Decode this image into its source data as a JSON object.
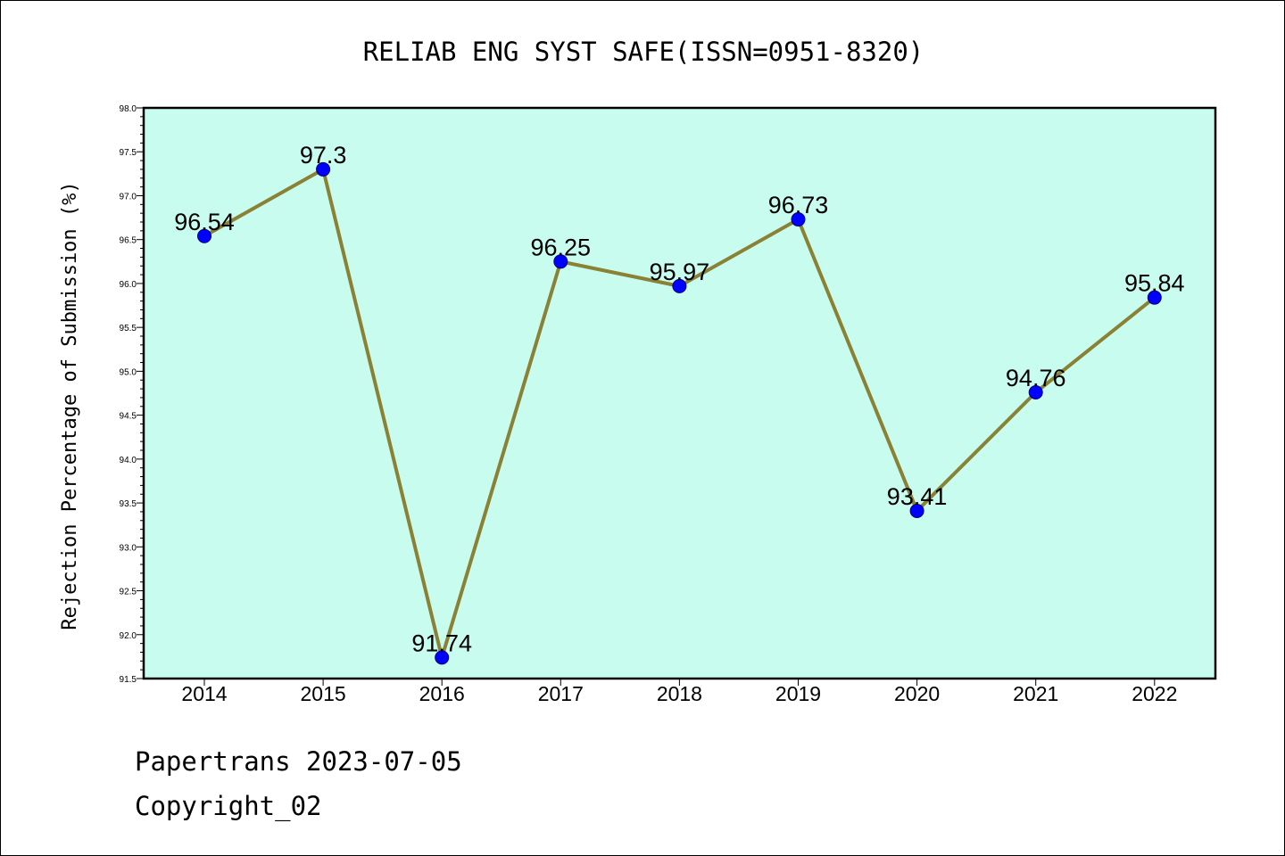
{
  "footer": {
    "line1": "Papertrans 2023-07-05",
    "line2": "Copyright_02"
  },
  "colors": {
    "plot_background": "#c8fcee",
    "line": "#8b8135",
    "marker": "#0000ff",
    "frame": "#000000"
  },
  "chart_data": {
    "type": "line",
    "title": "RELIAB ENG SYST SAFE(ISSN=0951-8320)",
    "xlabel": "",
    "ylabel": "Rejection Percentage of Submission (%)",
    "categories": [
      "2014",
      "2015",
      "2016",
      "2017",
      "2018",
      "2019",
      "2020",
      "2021",
      "2022"
    ],
    "series": [
      {
        "values": [
          96.54,
          97.3,
          91.74,
          96.25,
          95.97,
          96.73,
          93.41,
          94.76,
          95.84
        ],
        "labels": [
          "96.54",
          "97.3",
          "91.74",
          "96.25",
          "95.97",
          "96.73",
          "93.41",
          "94.76",
          "95.84"
        ]
      }
    ],
    "ylim": [
      91.5,
      98.0
    ],
    "yticks": [
      "91.5",
      "92.0",
      "92.5",
      "93.0",
      "93.5",
      "94.0",
      "94.5",
      "95.0",
      "95.5",
      "96.0",
      "96.5",
      "97.0",
      "97.5",
      "98.0"
    ],
    "grid": false,
    "legend": "none"
  }
}
